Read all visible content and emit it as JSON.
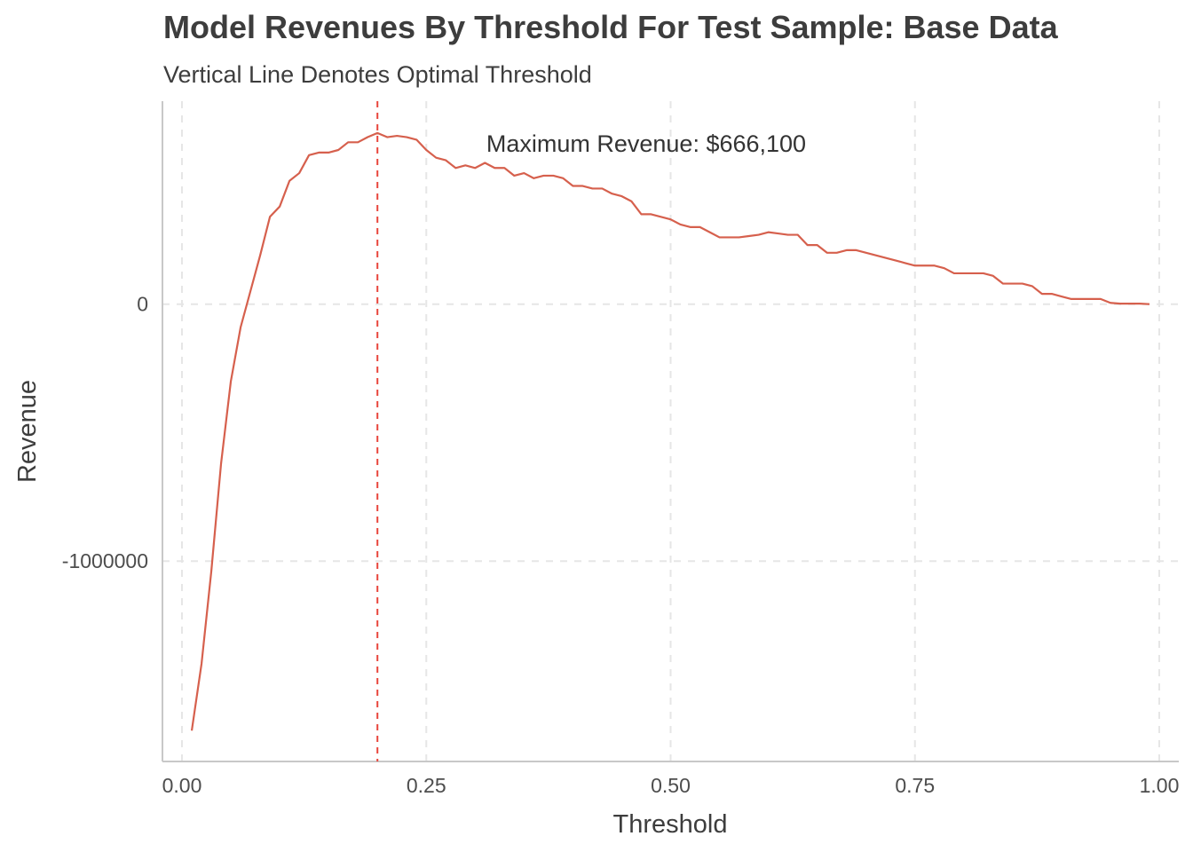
{
  "chart_data": {
    "type": "line",
    "title": "Model Revenues By Threshold For Test Sample: Base Data",
    "subtitle": "Vertical Line Denotes Optimal Threshold",
    "xlabel": "Threshold",
    "ylabel": "Revenue",
    "xlim": [
      -0.02,
      1.02
    ],
    "ylim": [
      -1780000,
      790000
    ],
    "x_ticks": [
      0,
      0.25,
      0.5,
      0.75,
      1
    ],
    "x_tick_labels": [
      "0.00",
      "0.25",
      "0.50",
      "0.75",
      "1.00"
    ],
    "y_ticks": [
      -1000000,
      0
    ],
    "y_tick_labels": [
      "-1000000",
      "0"
    ],
    "grid": true,
    "line_color": "#d6604d",
    "optimal_threshold": 0.2,
    "annotation": {
      "text": "Maximum Revenue: $666,100",
      "x": 0.475,
      "y": 625000
    },
    "series": [
      {
        "x": [
          0.01,
          0.02,
          0.03,
          0.04,
          0.05,
          0.06,
          0.07,
          0.08,
          0.09,
          0.1,
          0.11,
          0.12,
          0.13,
          0.14,
          0.15,
          0.16,
          0.17,
          0.18,
          0.19,
          0.2,
          0.21,
          0.22,
          0.23,
          0.24,
          0.25,
          0.26,
          0.27,
          0.28,
          0.29,
          0.3,
          0.31,
          0.32,
          0.33,
          0.34,
          0.35,
          0.36,
          0.37,
          0.38,
          0.39,
          0.4,
          0.41,
          0.42,
          0.43,
          0.44,
          0.45,
          0.46,
          0.47,
          0.48,
          0.49,
          0.5,
          0.51,
          0.52,
          0.53,
          0.54,
          0.55,
          0.56,
          0.57,
          0.58,
          0.59,
          0.6,
          0.61,
          0.62,
          0.63,
          0.64,
          0.65,
          0.66,
          0.67,
          0.68,
          0.69,
          0.7,
          0.71,
          0.72,
          0.73,
          0.74,
          0.75,
          0.76,
          0.77,
          0.78,
          0.79,
          0.8,
          0.81,
          0.82,
          0.83,
          0.84,
          0.85,
          0.86,
          0.87,
          0.88,
          0.89,
          0.9,
          0.91,
          0.92,
          0.93,
          0.94,
          0.95,
          0.96,
          0.97,
          0.98,
          0.99
        ],
        "y": [
          -1660000,
          -1400000,
          -1040000,
          -620000,
          -300000,
          -90000,
          50000,
          190000,
          340000,
          380000,
          480000,
          510000,
          580000,
          590000,
          590000,
          600000,
          630000,
          630000,
          650000,
          666100,
          650000,
          655000,
          650000,
          640000,
          600000,
          570000,
          560000,
          530000,
          540000,
          530000,
          550000,
          530000,
          530000,
          500000,
          510000,
          490000,
          500000,
          500000,
          490000,
          460000,
          460000,
          450000,
          450000,
          430000,
          420000,
          400000,
          350000,
          350000,
          340000,
          330000,
          310000,
          300000,
          300000,
          280000,
          260000,
          260000,
          260000,
          265000,
          270000,
          280000,
          275000,
          270000,
          270000,
          230000,
          230000,
          200000,
          200000,
          210000,
          210000,
          200000,
          190000,
          180000,
          170000,
          160000,
          150000,
          150000,
          150000,
          140000,
          120000,
          120000,
          120000,
          120000,
          110000,
          80000,
          80000,
          80000,
          70000,
          40000,
          40000,
          30000,
          20000,
          20000,
          20000,
          20000,
          5000,
          2000,
          2000,
          2000,
          0
        ]
      }
    ]
  }
}
